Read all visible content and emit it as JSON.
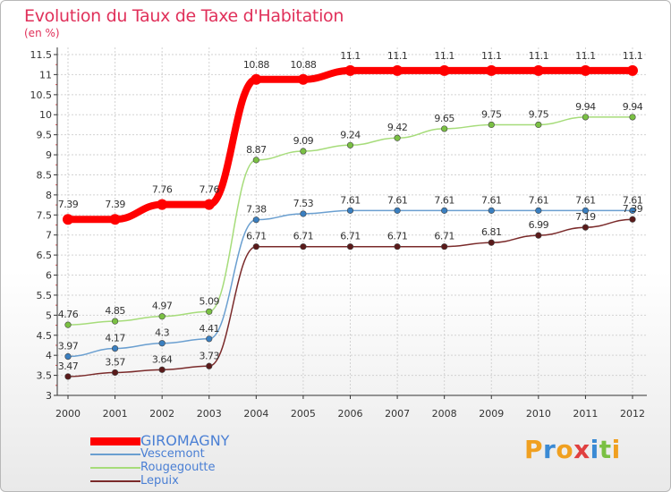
{
  "title": "Evolution du Taux de Taxe d'Habitation",
  "unit": "(en %)",
  "logo": {
    "text": "Proxiti",
    "letters": [
      "P",
      "r",
      "o",
      "x",
      "i",
      "t",
      "i"
    ],
    "colors": [
      "#f0a020",
      "#3a8ad4",
      "#f0a020",
      "#e04040",
      "#3a8ad4",
      "#7ac043",
      "#f0a020"
    ]
  },
  "chart_data": {
    "type": "line",
    "title": "Evolution du Taux de Taxe d'Habitation",
    "ylabel": "(en %)",
    "xlabel": "",
    "ylim": [
      3,
      11.5
    ],
    "yticks": [
      "3",
      "3.5",
      "4",
      "4.5",
      "5",
      "5.5",
      "6",
      "6.5",
      "7",
      "7.5",
      "8",
      "8.5",
      "9",
      "9.5",
      "10",
      "10.5",
      "11",
      "11.5"
    ],
    "x": [
      "2000",
      "2001",
      "2002",
      "2003",
      "2004",
      "2005",
      "2006",
      "2007",
      "2008",
      "2009",
      "2010",
      "2011",
      "2012"
    ],
    "series": [
      {
        "name": "GIROMAGNY",
        "color": "#ff0000",
        "marker": "#ff0000",
        "values": [
          7.39,
          7.39,
          7.76,
          7.76,
          10.88,
          10.88,
          11.1,
          11.1,
          11.1,
          11.1,
          11.1,
          11.1,
          11.1
        ],
        "labels": [
          "7.39",
          "7.39",
          "7.76",
          "7.76",
          "10.88",
          "10.88",
          "11.1",
          "11.1",
          "11.1",
          "11.1",
          "11.1",
          "11.1",
          "11.1"
        ]
      },
      {
        "name": "Vescemont",
        "color": "#6a9fd0",
        "marker": "#3a7fc0",
        "values": [
          3.97,
          4.17,
          4.3,
          4.41,
          7.38,
          7.53,
          7.61,
          7.61,
          7.61,
          7.61,
          7.61,
          7.61,
          7.61
        ],
        "labels": [
          "3.97",
          "4.17",
          "4.3",
          "4.41",
          "7.38",
          "7.53",
          "7.61",
          "7.61",
          "7.61",
          "7.61",
          "7.61",
          "7.61",
          "7.61"
        ]
      },
      {
        "name": "Rougegoutte",
        "color": "#a6dc7a",
        "marker": "#7ac043",
        "values": [
          4.76,
          4.85,
          4.97,
          5.09,
          8.87,
          9.09,
          9.24,
          9.42,
          9.65,
          9.75,
          9.75,
          9.94,
          9.94
        ],
        "labels": [
          "4.76",
          "4.85",
          "4.97",
          "5.09",
          "8.87",
          "9.09",
          "9.24",
          "9.42",
          "9.65",
          "9.75",
          "9.75",
          "9.94",
          "9.94"
        ]
      },
      {
        "name": "Lepuix",
        "color": "#7a2a2a",
        "marker": "#5a1a1a",
        "values": [
          3.47,
          3.57,
          3.64,
          3.73,
          6.71,
          6.71,
          6.71,
          6.71,
          6.71,
          6.81,
          6.99,
          7.19,
          7.39
        ],
        "labels": [
          "3.47",
          "3.57",
          "3.64",
          "3.73",
          "6.71",
          "6.71",
          "6.71",
          "6.71",
          "6.71",
          "6.81",
          "6.99",
          "7.19",
          "7.39"
        ]
      }
    ],
    "legend": "bottom-left"
  }
}
